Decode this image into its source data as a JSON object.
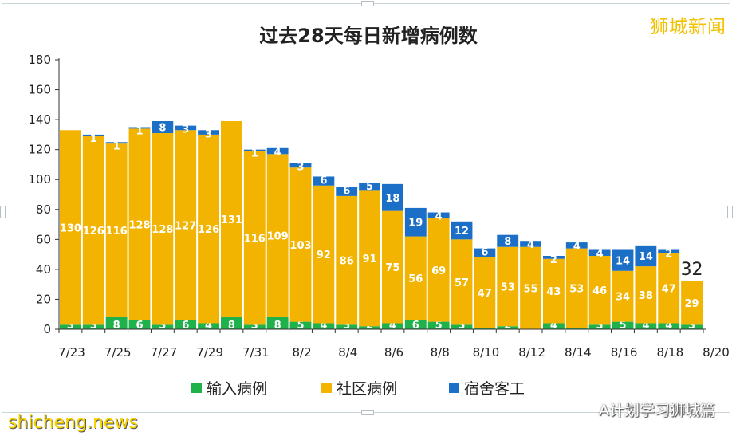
{
  "brand": "狮城新闻",
  "watermark_left": "shicheng.news",
  "watermark_right": "A计划学习狮城篇",
  "colors": {
    "import": "#1fb14a",
    "community": "#f2b400",
    "dorm": "#1c6fc6"
  },
  "chart_data": {
    "type": "bar",
    "stacked": true,
    "title": "过去28天每日新增病例数",
    "categories": [
      "7/23",
      "7/24",
      "7/25",
      "7/26",
      "7/27",
      "7/28",
      "7/29",
      "7/30",
      "7/31",
      "8/1",
      "8/2",
      "8/3",
      "8/4",
      "8/5",
      "8/6",
      "8/7",
      "8/8",
      "8/9",
      "8/10",
      "8/11",
      "8/12",
      "8/13",
      "8/14",
      "8/15",
      "8/16",
      "8/17",
      "8/18",
      "8/19"
    ],
    "x_tick_labels": [
      "7/23",
      "7/25",
      "7/27",
      "7/29",
      "7/31",
      "8/2",
      "8/4",
      "8/6",
      "8/8",
      "8/10",
      "8/12",
      "8/14",
      "8/16",
      "8/18",
      "8/20"
    ],
    "ylim": [
      0,
      180
    ],
    "yticks": [
      0,
      20,
      40,
      60,
      80,
      100,
      120,
      140,
      160,
      180
    ],
    "series": [
      {
        "name": "输入病例",
        "color": "#1fb14a",
        "values": [
          3,
          3,
          8,
          6,
          3,
          6,
          4,
          8,
          3,
          8,
          5,
          4,
          3,
          2,
          4,
          6,
          5,
          3,
          1,
          2,
          0,
          4,
          1,
          3,
          5,
          4,
          4,
          3
        ]
      },
      {
        "name": "社区病例",
        "color": "#f2b400",
        "values": [
          130,
          126,
          116,
          128,
          128,
          127,
          126,
          131,
          116,
          109,
          103,
          92,
          86,
          91,
          75,
          56,
          69,
          57,
          47,
          53,
          55,
          43,
          53,
          46,
          34,
          38,
          47,
          29
        ]
      },
      {
        "name": "宿舍客工",
        "color": "#1c6fc6",
        "values": [
          0,
          1,
          1,
          1,
          8,
          3,
          3,
          0,
          1,
          4,
          3,
          6,
          6,
          5,
          18,
          19,
          4,
          12,
          6,
          8,
          4,
          2,
          4,
          4,
          14,
          14,
          2,
          0
        ]
      }
    ],
    "total_labels": [
      {
        "category": "8/19",
        "text": "32"
      }
    ],
    "legend_position": "bottom",
    "grid": false
  }
}
